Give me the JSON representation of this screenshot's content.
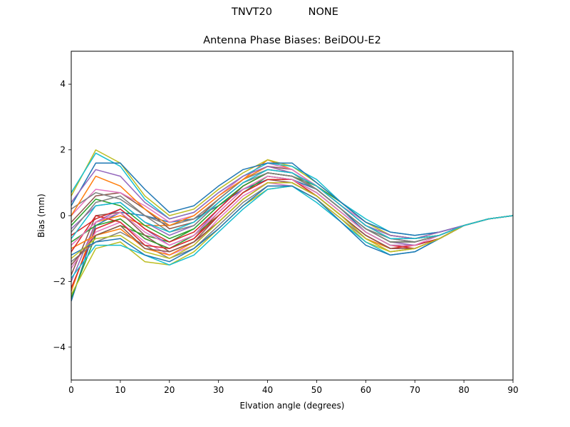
{
  "header": {
    "station": "TNVT20",
    "radome": "NONE"
  },
  "chart_data": {
    "type": "line",
    "title": "Antenna Phase Biases: BeiDOU-E2",
    "xlabel": "Elvation angle (degrees)",
    "ylabel": "Bias (mm)",
    "xlim": [
      0,
      90
    ],
    "ylim": [
      -5,
      5
    ],
    "xticks": [
      0,
      10,
      20,
      30,
      40,
      50,
      60,
      70,
      80,
      90
    ],
    "yticks": [
      -4,
      -2,
      0,
      2,
      4
    ],
    "grid": false,
    "legend": "none",
    "x": [
      0,
      5,
      10,
      15,
      20,
      25,
      30,
      35,
      40,
      45,
      50,
      55,
      60,
      65,
      70,
      75,
      80,
      85,
      90
    ],
    "series": [
      {
        "color": "#1f77b4",
        "values": [
          -2.6,
          -0.3,
          0.1,
          0.0,
          -0.2,
          -0.1,
          0.3,
          0.8,
          1.1,
          1.1,
          0.8,
          0.2,
          -0.5,
          -0.9,
          -0.9,
          -0.7,
          -0.3,
          -0.1,
          0.0
        ]
      },
      {
        "color": "#ff7f0e",
        "values": [
          -2.3,
          -0.2,
          0.0,
          -0.3,
          -0.3,
          -0.1,
          0.5,
          1.1,
          1.7,
          1.4,
          0.9,
          0.3,
          -0.3,
          -0.7,
          -0.8,
          -0.6,
          -0.3,
          -0.1,
          0.0
        ]
      },
      {
        "color": "#2ca02c",
        "values": [
          -2.5,
          -0.6,
          -0.3,
          -0.6,
          -0.8,
          -0.4,
          0.3,
          0.9,
          1.3,
          1.2,
          0.9,
          0.4,
          -0.2,
          -0.6,
          -0.7,
          -0.6,
          -0.3,
          -0.1,
          0.0
        ]
      },
      {
        "color": "#d62728",
        "values": [
          -2.2,
          -0.4,
          -0.1,
          -0.7,
          -1.0,
          -0.7,
          0.1,
          0.8,
          1.2,
          1.1,
          0.7,
          0.1,
          -0.5,
          -0.9,
          -1.0,
          -0.7,
          -0.3,
          -0.1,
          0.0
        ]
      },
      {
        "color": "#9467bd",
        "values": [
          -2.0,
          -0.2,
          0.2,
          -0.4,
          -0.9,
          -0.6,
          0.2,
          0.9,
          1.3,
          1.2,
          0.8,
          0.2,
          -0.4,
          -0.8,
          -0.9,
          -0.7,
          -0.3,
          -0.1,
          0.0
        ]
      },
      {
        "color": "#8c564b",
        "values": [
          -1.8,
          0.0,
          0.1,
          -0.6,
          -1.1,
          -0.8,
          0.0,
          0.7,
          1.1,
          1.0,
          0.6,
          0.0,
          -0.6,
          -1.0,
          -1.0,
          -0.7,
          -0.3,
          -0.1,
          0.0
        ]
      },
      {
        "color": "#e377c2",
        "values": [
          -1.6,
          -0.5,
          -0.2,
          -0.8,
          -1.2,
          -0.9,
          -0.1,
          0.6,
          1.0,
          0.9,
          0.5,
          -0.1,
          -0.7,
          -1.1,
          -1.0,
          -0.7,
          -0.3,
          -0.1,
          0.0
        ]
      },
      {
        "color": "#7f7f7f",
        "values": [
          -1.4,
          -0.8,
          -0.5,
          -0.9,
          -1.3,
          -1.0,
          -0.3,
          0.4,
          0.9,
          0.9,
          0.5,
          -0.1,
          -0.7,
          -1.0,
          -1.0,
          -0.7,
          -0.3,
          -0.1,
          0.0
        ]
      },
      {
        "color": "#bcbd22",
        "values": [
          -2.4,
          -1.0,
          -0.8,
          -1.4,
          -1.5,
          -1.1,
          -0.4,
          0.3,
          0.8,
          0.9,
          0.5,
          -0.1,
          -0.8,
          -1.1,
          -1.0,
          -0.7,
          -0.3,
          -0.1,
          0.0
        ]
      },
      {
        "color": "#17becf",
        "values": [
          -1.9,
          -0.9,
          -0.9,
          -1.2,
          -1.5,
          -1.2,
          -0.5,
          0.2,
          0.8,
          0.9,
          0.4,
          -0.2,
          -0.8,
          -1.2,
          -1.1,
          -0.7,
          -0.3,
          -0.1,
          0.0
        ]
      },
      {
        "color": "#1f77b4",
        "values": [
          -1.2,
          -0.8,
          -0.7,
          -1.2,
          -1.4,
          -1.0,
          -0.4,
          0.3,
          0.9,
          0.9,
          0.5,
          -0.2,
          -0.9,
          -1.2,
          -1.1,
          -0.7,
          -0.3,
          -0.1,
          0.0
        ]
      },
      {
        "color": "#ff7f0e",
        "values": [
          -1.0,
          -0.6,
          -0.4,
          -1.0,
          -1.2,
          -0.8,
          -0.2,
          0.5,
          1.0,
          1.0,
          0.6,
          0.0,
          -0.7,
          -1.0,
          -1.0,
          -0.7,
          -0.3,
          -0.1,
          0.0
        ]
      },
      {
        "color": "#2ca02c",
        "values": [
          -0.8,
          -0.3,
          -0.1,
          -0.7,
          -1.0,
          -0.6,
          0.0,
          0.7,
          1.2,
          1.1,
          0.7,
          0.1,
          -0.5,
          -0.9,
          -0.9,
          -0.7,
          -0.3,
          -0.1,
          0.0
        ]
      },
      {
        "color": "#d62728",
        "values": [
          -0.6,
          -0.1,
          0.2,
          -0.4,
          -0.8,
          -0.5,
          0.2,
          0.9,
          1.3,
          1.2,
          0.8,
          0.2,
          -0.4,
          -0.8,
          -0.8,
          -0.6,
          -0.3,
          -0.1,
          0.0
        ]
      },
      {
        "color": "#9467bd",
        "values": [
          -0.4,
          0.3,
          0.4,
          -0.2,
          -0.6,
          -0.3,
          0.4,
          1.0,
          1.4,
          1.3,
          0.9,
          0.3,
          -0.3,
          -0.7,
          -0.8,
          -0.6,
          -0.3,
          -0.1,
          0.0
        ]
      },
      {
        "color": "#8c564b",
        "values": [
          -0.2,
          0.6,
          0.7,
          0.2,
          -0.4,
          -0.2,
          0.5,
          1.1,
          1.5,
          1.4,
          0.9,
          0.3,
          -0.3,
          -0.6,
          -0.7,
          -0.6,
          -0.3,
          -0.1,
          0.0
        ]
      },
      {
        "color": "#e377c2",
        "values": [
          0.0,
          0.8,
          0.7,
          0.3,
          -0.2,
          0.0,
          0.6,
          1.2,
          1.6,
          1.4,
          0.9,
          0.3,
          -0.2,
          -0.6,
          -0.7,
          -0.5,
          -0.3,
          -0.1,
          0.0
        ]
      },
      {
        "color": "#7f7f7f",
        "values": [
          0.2,
          0.7,
          0.5,
          0.0,
          -0.3,
          -0.1,
          0.5,
          1.1,
          1.4,
          1.3,
          0.8,
          0.2,
          -0.4,
          -0.7,
          -0.8,
          -0.6,
          -0.3,
          -0.1,
          0.0
        ]
      },
      {
        "color": "#bcbd22",
        "values": [
          0.6,
          2.0,
          1.6,
          0.6,
          0.0,
          0.2,
          0.8,
          1.3,
          1.7,
          1.5,
          1.0,
          0.4,
          -0.2,
          -0.6,
          -0.7,
          -0.5,
          -0.3,
          -0.1,
          0.0
        ]
      },
      {
        "color": "#17becf",
        "values": [
          0.7,
          1.9,
          1.5,
          0.5,
          -0.1,
          0.1,
          0.7,
          1.2,
          1.6,
          1.5,
          1.1,
          0.4,
          -0.1,
          -0.5,
          -0.6,
          -0.5,
          -0.3,
          -0.1,
          0.0
        ]
      },
      {
        "color": "#1f77b4",
        "values": [
          0.3,
          1.6,
          1.6,
          0.8,
          0.1,
          0.3,
          0.9,
          1.4,
          1.6,
          1.6,
          1.0,
          0.4,
          -0.2,
          -0.5,
          -0.6,
          -0.5,
          -0.3,
          -0.1,
          0.0
        ]
      },
      {
        "color": "#ff7f0e",
        "values": [
          0.0,
          1.2,
          0.9,
          0.2,
          -0.3,
          0.0,
          0.6,
          1.1,
          1.5,
          1.3,
          0.9,
          0.3,
          -0.3,
          -0.7,
          -0.7,
          -0.6,
          -0.3,
          -0.1,
          0.0
        ]
      },
      {
        "color": "#2ca02c",
        "values": [
          -0.3,
          0.5,
          0.3,
          -0.3,
          -0.7,
          -0.4,
          0.3,
          0.9,
          1.3,
          1.2,
          0.8,
          0.2,
          -0.4,
          -0.8,
          -0.8,
          -0.6,
          -0.3,
          -0.1,
          0.0
        ]
      },
      {
        "color": "#d62728",
        "values": [
          -1.1,
          0.0,
          -0.2,
          -0.9,
          -1.0,
          -0.7,
          0.0,
          0.7,
          1.1,
          1.1,
          0.6,
          0.0,
          -0.6,
          -1.0,
          -0.9,
          -0.7,
          -0.3,
          -0.1,
          0.0
        ]
      },
      {
        "color": "#9467bd",
        "values": [
          0.4,
          1.4,
          1.2,
          0.4,
          -0.1,
          0.1,
          0.7,
          1.2,
          1.5,
          1.3,
          0.9,
          0.3,
          -0.3,
          -0.6,
          -0.7,
          -0.5,
          -0.3,
          -0.1,
          0.0
        ]
      },
      {
        "color": "#8c564b",
        "values": [
          -1.5,
          -0.6,
          -0.3,
          -1.0,
          -1.1,
          -0.8,
          -0.2,
          0.5,
          1.0,
          1.0,
          0.6,
          0.0,
          -0.6,
          -1.0,
          -1.0,
          -0.7,
          -0.3,
          -0.1,
          0.0
        ]
      },
      {
        "color": "#e377c2",
        "values": [
          -0.9,
          -0.2,
          0.1,
          -0.5,
          -0.9,
          -0.6,
          0.1,
          0.8,
          1.2,
          1.1,
          0.7,
          0.1,
          -0.5,
          -0.9,
          -0.9,
          -0.6,
          -0.3,
          -0.1,
          0.0
        ]
      },
      {
        "color": "#7f7f7f",
        "values": [
          -0.5,
          0.4,
          0.6,
          0.0,
          -0.5,
          -0.3,
          0.4,
          1.0,
          1.3,
          1.2,
          0.8,
          0.2,
          -0.4,
          -0.8,
          -0.8,
          -0.6,
          -0.3,
          -0.1,
          0.0
        ]
      },
      {
        "color": "#bcbd22",
        "values": [
          -1.3,
          -0.7,
          -0.6,
          -1.1,
          -1.3,
          -0.9,
          -0.2,
          0.5,
          1.0,
          1.0,
          0.6,
          0.0,
          -0.7,
          -1.1,
          -1.0,
          -0.7,
          -0.3,
          -0.1,
          0.0
        ]
      },
      {
        "color": "#17becf",
        "values": [
          -0.7,
          0.3,
          0.4,
          -0.2,
          -0.5,
          -0.2,
          0.4,
          1.0,
          1.4,
          1.3,
          0.9,
          0.3,
          -0.3,
          -0.7,
          -0.7,
          -0.6,
          -0.3,
          -0.1,
          0.0
        ]
      }
    ]
  }
}
